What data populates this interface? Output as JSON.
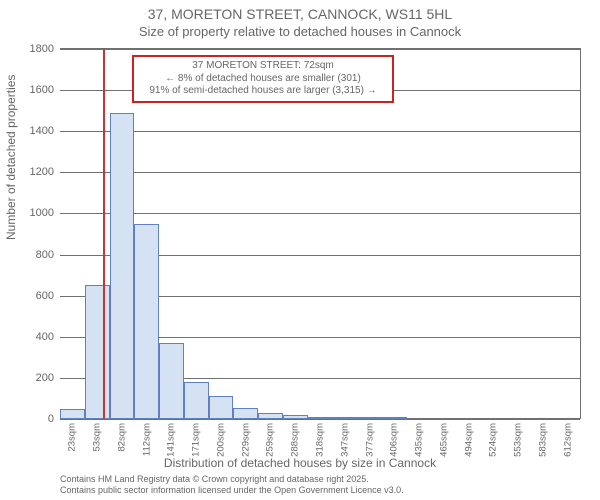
{
  "title_main": "37, MORETON STREET, CANNOCK, WS11 5HL",
  "title_sub": "Size of property relative to detached houses in Cannock",
  "ylabel": "Number of detached properties",
  "xlabel": "Distribution of detached houses by size in Cannock",
  "credits_line1": "Contains HM Land Registry data © Crown copyright and database right 2025.",
  "credits_line2": "Contains public sector information licensed under the Open Government Licence v3.0.",
  "chart": {
    "type": "histogram",
    "ylim": [
      0,
      1800
    ],
    "ytick_step": 200,
    "yticks": [
      0,
      200,
      400,
      600,
      800,
      1000,
      1200,
      1400,
      1600,
      1800
    ],
    "x_start": 23,
    "x_step": 29.45,
    "x_count": 21,
    "xticks": [
      "23sqm",
      "53sqm",
      "82sqm",
      "112sqm",
      "141sqm",
      "171sqm",
      "200sqm",
      "229sqm",
      "259sqm",
      "288sqm",
      "318sqm",
      "347sqm",
      "377sqm",
      "406sqm",
      "435sqm",
      "465sqm",
      "494sqm",
      "524sqm",
      "553sqm",
      "583sqm",
      "612sqm"
    ],
    "values": [
      50,
      650,
      1490,
      950,
      370,
      180,
      110,
      55,
      30,
      20,
      10,
      10,
      10,
      5,
      0,
      0,
      0,
      0,
      0,
      0,
      0
    ],
    "bar_fill": "#d4e2f4",
    "bar_border": "#6080c0",
    "grid_color": "#707070",
    "background": "#ffffff",
    "marker_sqm": 72,
    "marker_color": "#c23838",
    "annotation": {
      "line1": "37 MORETON STREET: 72sqm",
      "line2": "← 8% of detached houses are smaller (301)",
      "line3": "91% of semi-detached houses are larger (3,315) →",
      "border_color": "#cc2222"
    }
  }
}
